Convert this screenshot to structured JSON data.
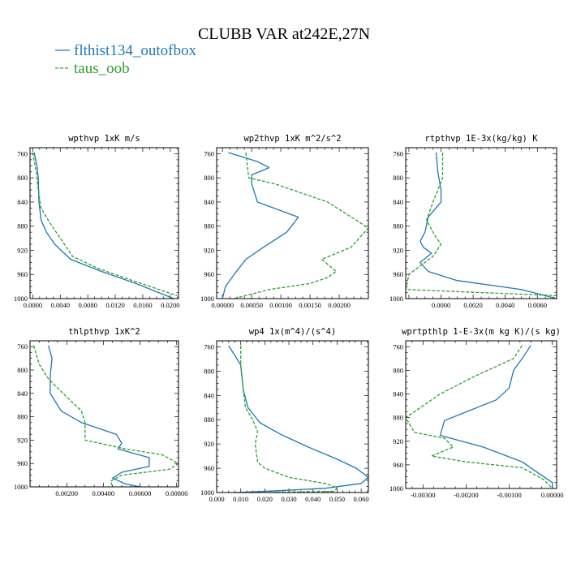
{
  "title": "CLUBB VAR at242E,27N",
  "legend": [
    {
      "name": "flthist134_outofbox",
      "color": "#1f77b4",
      "dash": "solid"
    },
    {
      "name": "taus_oob",
      "color": "#2ca02c",
      "dash": "dashed"
    }
  ],
  "chart_data": [
    {
      "type": "line",
      "title": "wpthvp  1xK m/s",
      "xlim": [
        -0.0004,
        0.0212
      ],
      "ylim": [
        1000,
        750
      ],
      "yticks": [
        760,
        800,
        840,
        880,
        920,
        960,
        1000
      ],
      "xticks": [
        0.0,
        0.004,
        0.008,
        0.012,
        0.016,
        0.02
      ],
      "xtick_labels": [
        "0.0000",
        "0.0040",
        "0.0080",
        "0.0120",
        "0.0160",
        "0.0200"
      ],
      "series": [
        {
          "name": "flthist134_outofbox",
          "x": [
            0.0002,
            0.0006,
            0.0008,
            0.0009,
            0.0012,
            0.002,
            0.0032,
            0.0055,
            0.01,
            0.015,
            0.0205
          ],
          "y": [
            758,
            780,
            800,
            840,
            870,
            890,
            910,
            935,
            955,
            975,
            1000
          ]
        },
        {
          "name": "taus_oob",
          "x": [
            0.0,
            0.0005,
            0.0008,
            0.0012,
            0.0025,
            0.004,
            0.0058,
            0.0095,
            0.0145,
            0.021
          ],
          "y": [
            758,
            790,
            820,
            850,
            875,
            900,
            930,
            950,
            970,
            995
          ]
        }
      ]
    },
    {
      "type": "line",
      "title": "wp2thvp  1xK m^2/s^2",
      "xlim": [
        -0.0001,
        0.0025
      ],
      "ylim": [
        1000,
        750
      ],
      "yticks": [
        760,
        800,
        840,
        880,
        920,
        960,
        1000
      ],
      "xticks": [
        0.0,
        0.0005,
        0.001,
        0.0015,
        0.002
      ],
      "xtick_labels": [
        "0.00000",
        "0.00050",
        "0.00100",
        "0.00150",
        "0.00200"
      ],
      "series": [
        {
          "name": "flthist134_outofbox",
          "x": [
            0.0001,
            0.0006,
            0.0008,
            0.0005,
            0.0005,
            0.0006,
            0.0013,
            0.0011,
            0.0007,
            0.0004,
            0.0002,
            5e-05,
            0.0
          ],
          "y": [
            758,
            773,
            783,
            795,
            810,
            840,
            865,
            890,
            915,
            935,
            960,
            980,
            1000
          ]
        },
        {
          "name": "taus_oob",
          "x": [
            0.0004,
            0.00045,
            0.0009,
            0.0018,
            0.0025,
            0.0022,
            0.0017,
            0.00195,
            0.0018,
            0.0015,
            0.0008,
            0.0002
          ],
          "y": [
            758,
            800,
            810,
            840,
            883,
            915,
            935,
            955,
            965,
            975,
            985,
            1000
          ]
        }
      ]
    },
    {
      "type": "line",
      "title": "rtpthvp  1E-3x(kg/kg) K",
      "xlim": [
        -0.0022,
        0.0072
      ],
      "ylim": [
        1000,
        750
      ],
      "yticks": [
        760,
        800,
        840,
        880,
        920,
        960,
        1000
      ],
      "xticks": [
        0.0,
        0.002,
        0.004,
        0.006
      ],
      "xtick_labels": [
        "0.0000",
        "0.0020",
        "0.0040",
        "0.0060"
      ],
      "series": [
        {
          "name": "flthist134_outofbox",
          "x": [
            -0.0003,
            -0.0002,
            0.0,
            0.0,
            -0.0008,
            -0.001,
            -0.0013,
            -0.0011,
            -0.0006,
            -0.0013,
            -0.0008,
            0.001,
            0.005,
            0.0072
          ],
          "y": [
            758,
            790,
            820,
            840,
            865,
            890,
            905,
            915,
            925,
            940,
            955,
            970,
            985,
            1000
          ]
        },
        {
          "name": "taus_oob",
          "x": [
            0.0001,
            0.0001,
            -0.0005,
            -0.0009,
            -0.0004,
            0.0,
            -0.0005,
            -0.002,
            -0.0022,
            0.0072
          ],
          "y": [
            758,
            800,
            840,
            870,
            895,
            910,
            930,
            960,
            985,
            995
          ]
        }
      ]
    },
    {
      "type": "line",
      "title": "thlpthvp  1xK^2",
      "xlim": [
        0.0,
        0.0081
      ],
      "ylim": [
        1000,
        750
      ],
      "yticks": [
        760,
        800,
        840,
        880,
        920,
        960,
        1000
      ],
      "xticks": [
        0.002,
        0.004,
        0.006,
        0.008
      ],
      "xtick_labels": [
        "0.00200",
        "0.00400",
        "0.00600",
        "0.00800"
      ],
      "series": [
        {
          "name": "flthist134_outofbox",
          "x": [
            0.001,
            0.0012,
            0.0011,
            0.0011,
            0.0017,
            0.0028,
            0.0047,
            0.005,
            0.0048,
            0.0065,
            0.0065,
            0.005,
            0.0045,
            0.0052,
            0.006
          ],
          "y": [
            758,
            780,
            810,
            840,
            870,
            890,
            910,
            925,
            935,
            950,
            965,
            975,
            985,
            995,
            1000
          ]
        },
        {
          "name": "taus_oob",
          "x": [
            0.0002,
            0.0005,
            0.001,
            0.0018,
            0.0028,
            0.003,
            0.003,
            0.0052,
            0.0072,
            0.0081,
            0.0076,
            0.005,
            0.0044,
            0.0045
          ],
          "y": [
            758,
            790,
            815,
            840,
            870,
            890,
            920,
            935,
            945,
            960,
            970,
            980,
            990,
            1000
          ]
        }
      ]
    },
    {
      "type": "line",
      "title": "wp4  1x(m^4)/(s^4)",
      "xlim": [
        0.0,
        0.063
      ],
      "ylim": [
        1000,
        750
      ],
      "yticks": [
        760,
        800,
        840,
        880,
        920,
        960,
        1000
      ],
      "xticks": [
        0.0,
        0.01,
        0.02,
        0.03,
        0.04,
        0.05,
        0.06
      ],
      "xtick_labels": [
        "0.000",
        "0.010",
        "0.020",
        "0.030",
        "0.040",
        "0.050",
        "0.060"
      ],
      "series": [
        {
          "name": "flthist134_outofbox",
          "x": [
            0.005,
            0.01,
            0.011,
            0.013,
            0.018,
            0.027,
            0.038,
            0.05,
            0.058,
            0.063,
            0.06,
            0.045,
            0.025,
            0.008
          ],
          "y": [
            758,
            790,
            830,
            860,
            885,
            905,
            925,
            945,
            960,
            975,
            985,
            993,
            997,
            1000
          ]
        },
        {
          "name": "taus_oob",
          "x": [
            0.01,
            0.01,
            0.011,
            0.012,
            0.015,
            0.017,
            0.016,
            0.017,
            0.02,
            0.03,
            0.045,
            0.05,
            0.049,
            0.02
          ],
          "y": [
            758,
            790,
            830,
            860,
            880,
            900,
            920,
            950,
            960,
            975,
            985,
            992,
            998,
            1000
          ]
        }
      ]
    },
    {
      "type": "line",
      "title": "wprtpthlp  1-E-3x(m kg K)/(s kg)",
      "xlim": [
        -0.0034,
        0.0001
      ],
      "ylim": [
        1000,
        750
      ],
      "yticks": [
        760,
        800,
        840,
        880,
        920,
        960,
        1000
      ],
      "xticks": [
        -0.003,
        -0.002,
        -0.001,
        0.0
      ],
      "xtick_labels": [
        "-0.00300",
        "-0.00200",
        "-0.00100",
        "0.00000"
      ],
      "series": [
        {
          "name": "flthist134_outofbox",
          "x": [
            -0.0005,
            -0.0007,
            -0.0009,
            -0.001,
            -0.0013,
            -0.0025,
            -0.0026,
            -0.0016,
            -0.0007,
            -0.0004,
            0.0,
            0.0
          ],
          "y": [
            758,
            780,
            800,
            830,
            850,
            885,
            910,
            930,
            955,
            970,
            990,
            1000
          ]
        },
        {
          "name": "taus_oob",
          "x": [
            -0.0007,
            -0.0009,
            -0.0018,
            -0.0026,
            -0.0034,
            -0.0032,
            -0.0025,
            -0.0023,
            -0.0028,
            -0.002,
            -0.0007,
            -0.0002,
            0.0
          ],
          "y": [
            758,
            780,
            810,
            840,
            880,
            905,
            915,
            930,
            945,
            955,
            965,
            985,
            1000
          ]
        }
      ]
    }
  ]
}
